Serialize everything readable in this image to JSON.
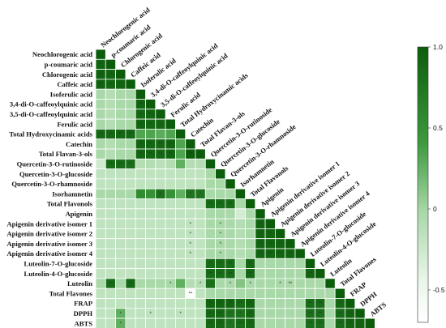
{
  "chart_data": {
    "type": "heatmap",
    "layout": "lower-triangle correlation matrix",
    "variables": [
      "Neochlorogenic acid",
      "p-coumaric acid",
      "Chlorogenic acid",
      "Caffeic acid",
      "Isoferulic acid",
      "3,4-di-O-caffeoylquinic acid",
      "3,5-di-O-caffeoylquinic acid",
      "Ferulic acid",
      "Total Hydroxycinamic acids",
      "Catechin",
      "Total Flavan-3-ols",
      "Quercetin-3-O-rutinoside",
      "Quercetin-3-O-glucoside",
      "Quercetin-3-O-rhamnoside",
      "Isorhamnetin",
      "Total Flavonols",
      "Apigenin",
      "Apigenin derivative isomer 1",
      "Apigenin derivative isomer 2",
      "Apigenin derivative isomer 3",
      "Apigenin derivative isomer 4",
      "Luteolin-7-O-glucoside",
      "Luteolin-4-O-glucoside",
      "Luteolin",
      "Total Flavones",
      "FRAP",
      "DPPH",
      "ABTS"
    ],
    "colorbar": {
      "ticks": [
        "1.0",
        "0.5",
        "0",
        "-0.5"
      ],
      "range": [
        -0.7,
        1.0
      ],
      "low_color": "#ffffff",
      "high_color": "#0b5d0b"
    },
    "rows": [
      {
        "values": [
          1.0
        ],
        "stars": [
          ""
        ]
      },
      {
        "values": [
          0.95,
          1.0
        ],
        "stars": [
          "**",
          ""
        ]
      },
      {
        "values": [
          0.97,
          0.95,
          1.0
        ],
        "stars": [
          "**",
          "**",
          ""
        ]
      },
      {
        "values": [
          0.96,
          0.93,
          0.95,
          1.0
        ],
        "stars": [
          "**",
          "**",
          "**",
          ""
        ]
      },
      {
        "values": [
          0.3,
          0.25,
          0.3,
          0.3,
          1.0
        ],
        "stars": [
          "",
          "",
          "",
          "",
          ""
        ]
      },
      {
        "values": [
          0.3,
          0.25,
          0.3,
          0.3,
          0.95,
          1.0
        ],
        "stars": [
          "",
          "",
          "",
          "",
          "**",
          ""
        ]
      },
      {
        "values": [
          0.3,
          0.25,
          0.3,
          0.3,
          0.93,
          0.95,
          1.0
        ],
        "stars": [
          "",
          "",
          "",
          "",
          "**",
          "**",
          ""
        ]
      },
      {
        "values": [
          0.3,
          0.25,
          0.3,
          0.3,
          0.95,
          0.93,
          0.93,
          1.0
        ],
        "stars": [
          "",
          "",
          "",
          "",
          "**",
          "**",
          "**",
          ""
        ]
      },
      {
        "values": [
          0.93,
          0.92,
          0.94,
          0.93,
          0.55,
          0.55,
          0.52,
          0.55,
          1.0
        ],
        "stars": [
          "**",
          "**",
          "**",
          "**",
          "",
          "",
          "",
          "",
          ""
        ]
      },
      {
        "values": [
          0.3,
          0.25,
          0.3,
          0.3,
          0.95,
          0.94,
          0.93,
          0.95,
          0.55,
          1.0
        ],
        "stars": [
          "",
          "",
          "",
          "",
          "**",
          "**",
          "**",
          "**",
          "",
          ""
        ]
      },
      {
        "values": [
          0.3,
          0.25,
          0.3,
          0.3,
          0.95,
          0.94,
          0.93,
          0.95,
          0.55,
          1.0,
          1.0
        ],
        "stars": [
          "",
          "",
          "",
          "",
          "**",
          "**",
          "**",
          "**",
          "",
          "**",
          ""
        ]
      },
      {
        "values": [
          0.12,
          0.9,
          0.9,
          0.88,
          0.25,
          0.25,
          0.22,
          0.25,
          0.5,
          0.25,
          0.25,
          1.0
        ],
        "stars": [
          "",
          "**",
          "**",
          "**",
          "",
          "",
          "",
          "",
          "",
          "",
          "",
          ""
        ]
      },
      {
        "values": [
          0.2,
          0.2,
          0.2,
          0.2,
          0.2,
          0.2,
          0.2,
          0.2,
          0.2,
          0.2,
          0.2,
          0.3,
          1.0
        ],
        "stars": [
          "",
          "",
          "",
          "",
          "",
          "",
          "",
          "",
          "",
          "",
          "",
          "",
          ""
        ]
      },
      {
        "values": [
          0.2,
          0.2,
          0.2,
          0.2,
          0.2,
          0.2,
          0.2,
          0.2,
          0.2,
          0.2,
          0.2,
          0.3,
          0.3,
          1.0
        ],
        "stars": [
          "",
          "",
          "",
          "",
          "",
          "",
          "",
          "",
          "",
          "",
          "",
          "",
          "",
          ""
        ]
      },
      {
        "values": [
          0.3,
          0.3,
          0.3,
          0.3,
          0.7,
          0.65,
          0.88,
          0.65,
          0.5,
          0.85,
          0.85,
          0.3,
          0.3,
          0.3,
          1.0
        ],
        "stars": [
          "",
          "",
          "",
          "",
          "",
          "",
          "*",
          "",
          "",
          "*",
          "*",
          "",
          "",
          "",
          ""
        ]
      },
      {
        "values": [
          0.2,
          0.2,
          0.2,
          0.2,
          0.2,
          0.2,
          0.2,
          0.2,
          0.2,
          0.2,
          0.2,
          0.9,
          0.9,
          0.9,
          0.3,
          1.0
        ],
        "stars": [
          "",
          "",
          "",
          "",
          "",
          "",
          "",
          "",
          "",
          "",
          "",
          "**",
          "**",
          "**",
          "",
          ""
        ]
      },
      {
        "values": [
          0.2,
          0.2,
          0.2,
          0.2,
          0.2,
          0.2,
          0.2,
          0.2,
          0.2,
          0.2,
          0.2,
          0.3,
          0.3,
          0.3,
          0.1,
          0.3,
          1.0
        ],
        "stars": [
          "",
          "",
          "",
          "",
          "",
          "",
          "",
          "",
          "",
          "",
          "",
          "",
          "",
          "",
          "",
          "",
          ""
        ]
      },
      {
        "values": [
          0.2,
          0.2,
          0.2,
          0.2,
          0.2,
          0.2,
          0.2,
          0.2,
          0.2,
          0.2,
          0.2,
          0.3,
          0.3,
          0.3,
          0.25,
          0.3,
          0.95,
          1.0
        ],
        "stars": [
          "",
          "",
          "",
          "",
          "",
          "",
          "",
          "",
          "",
          "*",
          "",
          "",
          "*",
          "",
          "",
          "",
          "**",
          ""
        ]
      },
      {
        "values": [
          0.2,
          0.2,
          0.2,
          0.2,
          0.2,
          0.2,
          0.2,
          0.2,
          0.2,
          0.2,
          0.2,
          0.3,
          0.3,
          0.3,
          0.25,
          0.3,
          0.95,
          0.95,
          1.0
        ],
        "stars": [
          "",
          "",
          "",
          "",
          "",
          "",
          "",
          "",
          "",
          "*",
          "",
          "",
          "*",
          "",
          "",
          "",
          "**",
          "**",
          ""
        ]
      },
      {
        "values": [
          0.2,
          0.2,
          0.2,
          0.2,
          0.2,
          0.2,
          0.2,
          0.2,
          0.2,
          0.2,
          0.2,
          0.3,
          0.3,
          0.3,
          0.25,
          0.3,
          0.95,
          0.95,
          0.95,
          1.0
        ],
        "stars": [
          "",
          "",
          "",
          "",
          "",
          "",
          "",
          "",
          "",
          "*",
          "",
          "",
          "*",
          "",
          "",
          "",
          "**",
          "**",
          "**",
          ""
        ]
      },
      {
        "values": [
          0.2,
          0.2,
          0.2,
          0.2,
          0.2,
          0.2,
          0.2,
          0.2,
          0.2,
          0.2,
          0.2,
          0.3,
          0.3,
          0.3,
          0.25,
          0.3,
          0.95,
          0.95,
          0.95,
          0.95,
          1.0
        ],
        "stars": [
          "",
          "",
          "",
          "",
          "",
          "",
          "",
          "",
          "",
          "*",
          "",
          "",
          "*",
          "",
          "",
          "",
          "**",
          "**",
          "**",
          "**",
          ""
        ]
      },
      {
        "values": [
          0.2,
          0.2,
          0.2,
          0.2,
          0.2,
          0.2,
          0.2,
          0.2,
          0.2,
          0.2,
          0.2,
          0.9,
          0.9,
          0.9,
          0.3,
          0.93,
          0.3,
          0.3,
          0.3,
          0.3,
          0.3,
          1.0
        ],
        "stars": [
          "",
          "",
          "",
          "",
          "",
          "",
          "",
          "",
          "",
          "",
          "",
          "**",
          "**",
          "**",
          "",
          "**",
          "",
          "",
          "",
          "",
          "",
          ""
        ]
      },
      {
        "values": [
          0.2,
          0.2,
          0.2,
          0.2,
          0.2,
          0.2,
          0.2,
          0.2,
          0.2,
          0.2,
          0.2,
          0.9,
          0.9,
          0.9,
          0.3,
          0.93,
          0.3,
          0.3,
          0.3,
          0.3,
          0.3,
          0.95,
          1.0
        ],
        "stars": [
          "",
          "",
          "",
          "",
          "",
          "",
          "",
          "",
          "",
          "",
          "",
          "**",
          "**",
          "**",
          "",
          "**",
          "",
          "",
          "",
          "",
          "",
          "**",
          ""
        ]
      },
      {
        "values": [
          0.3,
          0.9,
          0.3,
          0.92,
          0.3,
          0.3,
          0.3,
          0.3,
          0.5,
          0.25,
          0.25,
          0.88,
          0.3,
          0.3,
          0.4,
          0.3,
          0.3,
          0.3,
          0.3,
          0.3,
          0.3,
          0.3,
          0.3,
          1.0
        ],
        "stars": [
          "",
          "**",
          "",
          "**",
          "",
          "",
          "",
          "*",
          "",
          "",
          "*",
          "",
          "",
          "*",
          "",
          "*",
          "",
          "",
          "*",
          "**",
          "",
          "",
          "",
          ""
        ]
      },
      {
        "values": [
          0.2,
          0.2,
          0.2,
          0.2,
          0.2,
          0.2,
          0.2,
          0.2,
          0.2,
          -0.6,
          0.2,
          0.3,
          0.3,
          0.3,
          0.3,
          0.3,
          0.3,
          0.3,
          0.3,
          0.3,
          0.3,
          0.3,
          0.3,
          0.3,
          1.0
        ],
        "stars": [
          "",
          "",
          "",
          "",
          "",
          "",
          "",
          "",
          "",
          "**",
          "",
          "",
          "",
          "",
          "",
          "",
          "",
          "",
          "",
          "",
          "",
          "",
          "",
          "",
          ""
        ]
      },
      {
        "values": [
          0.2,
          0.2,
          0.2,
          0.2,
          0.2,
          0.2,
          0.2,
          0.2,
          0.2,
          0.2,
          0.2,
          0.95,
          0.95,
          0.95,
          0.9,
          0.95,
          0.3,
          0.3,
          0.3,
          0.3,
          0.3,
          0.9,
          0.9,
          0.3,
          0.92,
          1.0
        ],
        "stars": [
          "",
          "",
          "",
          "",
          "",
          "",
          "",
          "",
          "",
          "",
          "",
          "**",
          "**",
          "**",
          "**",
          "**",
          "",
          "",
          "",
          "",
          "",
          "**",
          "**",
          "",
          "**",
          ""
        ]
      },
      {
        "values": [
          0.2,
          0.2,
          0.5,
          0.2,
          0.2,
          0.2,
          0.2,
          0.2,
          0.2,
          0.2,
          0.2,
          0.93,
          0.93,
          0.85,
          0.85,
          0.93,
          0.3,
          0.3,
          0.3,
          0.3,
          0.3,
          0.88,
          0.88,
          0.3,
          0.9,
          0.95,
          1.0
        ],
        "stars": [
          "",
          "",
          "*",
          "",
          "",
          "*",
          "",
          "",
          "*",
          "",
          "",
          "**",
          "**",
          "*",
          "*",
          "**",
          "",
          "",
          "",
          "",
          "",
          "**",
          "**",
          "",
          "**",
          "**",
          ""
        ]
      },
      {
        "values": [
          0.2,
          0.2,
          0.5,
          0.2,
          0.2,
          0.2,
          0.2,
          0.2,
          0.2,
          0.2,
          0.2,
          0.93,
          0.93,
          0.85,
          0.9,
          0.93,
          0.3,
          0.3,
          0.3,
          0.3,
          0.3,
          0.88,
          0.88,
          0.3,
          0.9,
          0.95,
          0.95,
          1.0
        ],
        "stars": [
          "",
          "",
          "*",
          "",
          "",
          "",
          "",
          "",
          "",
          "",
          "",
          "**",
          "**",
          "*",
          "**",
          "**",
          "",
          "",
          "",
          "",
          "",
          "**",
          "**",
          "",
          "**",
          "**",
          "**",
          ""
        ]
      }
    ]
  }
}
